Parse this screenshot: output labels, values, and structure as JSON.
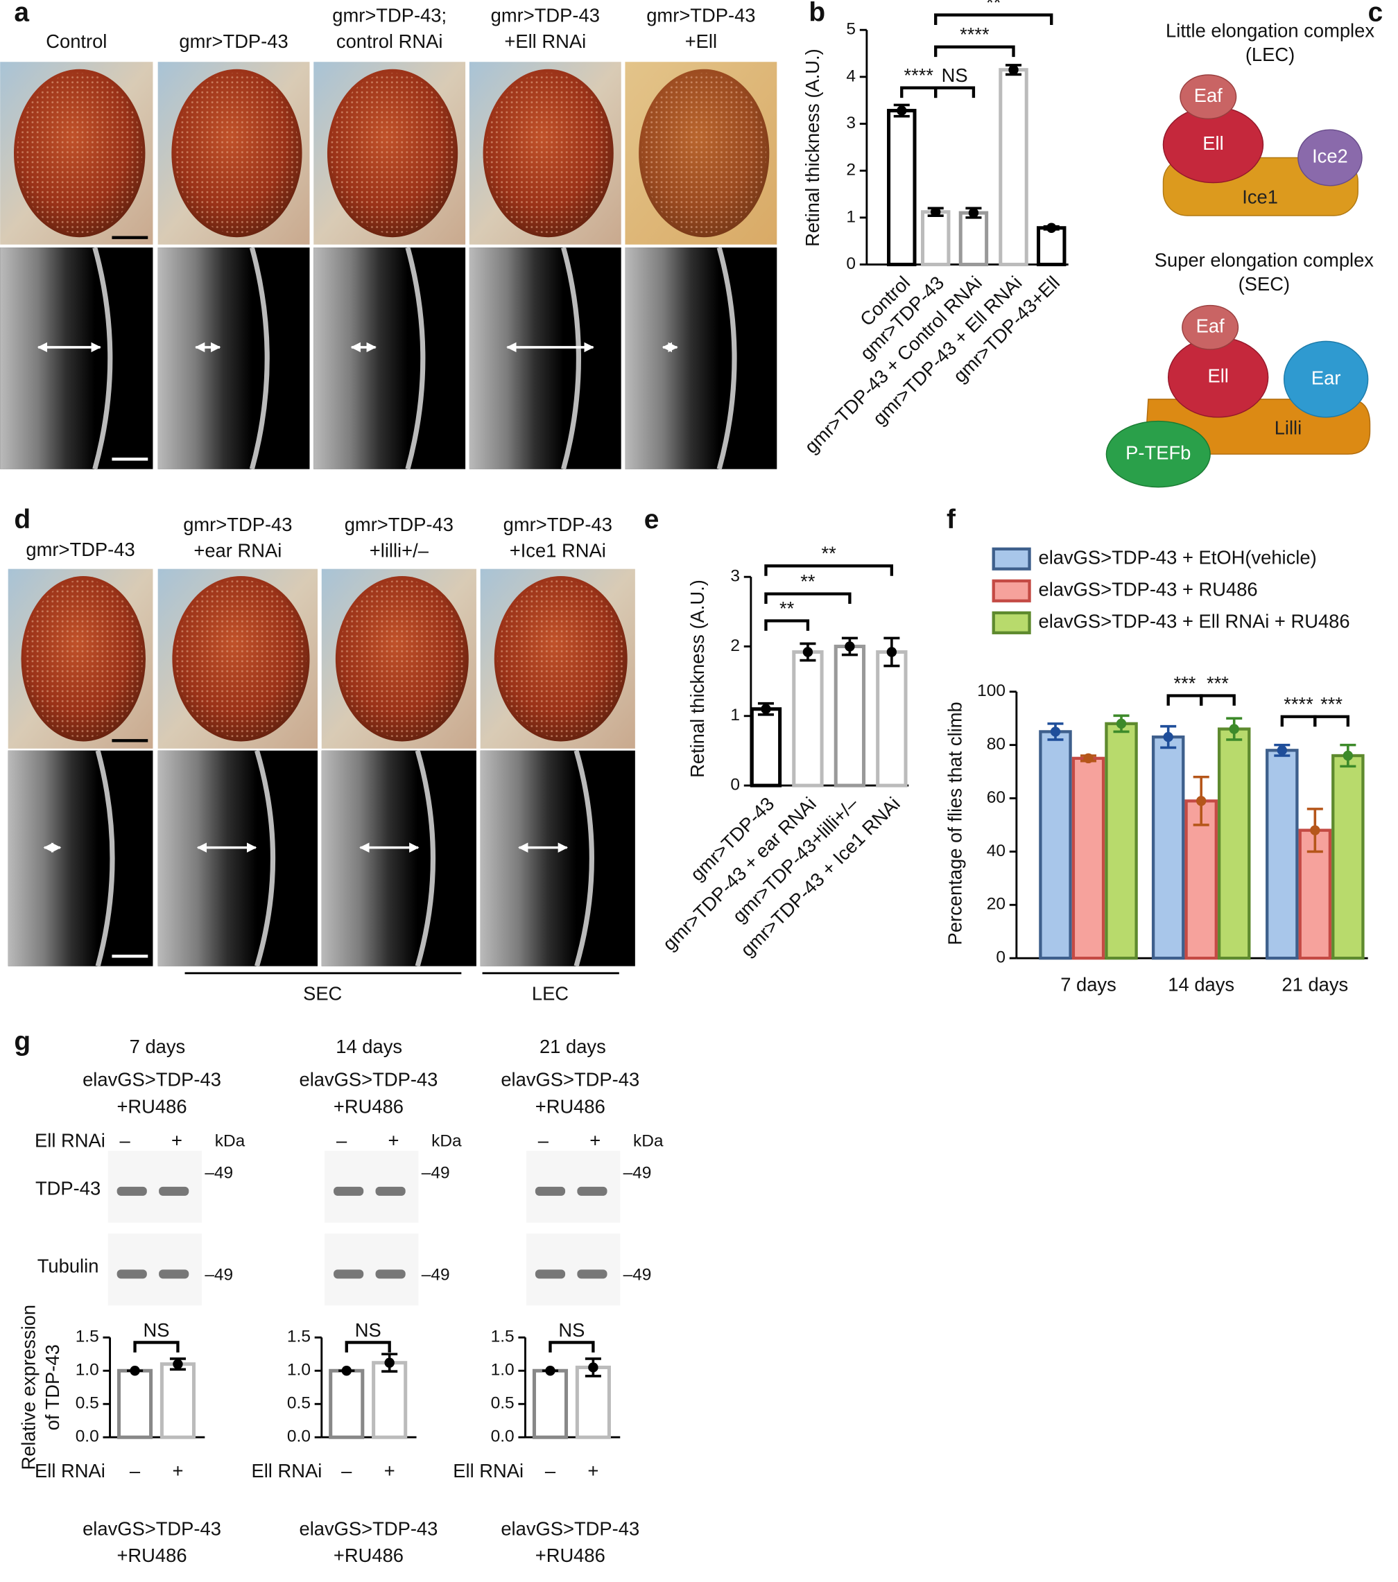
{
  "figure": {
    "panel_labels": [
      "a",
      "b",
      "c",
      "d",
      "e",
      "f",
      "g"
    ],
    "a": {
      "columns": [
        [
          "Control"
        ],
        [
          "gmr>TDP-43"
        ],
        [
          "gmr>TDP-43;",
          "control RNAi"
        ],
        [
          "gmr>TDP-43",
          "+Ell RNAi"
        ],
        [
          "gmr>TDP-43",
          "+Ell"
        ]
      ]
    },
    "c": {
      "lec_title": [
        "Little elongation complex",
        "(LEC)"
      ],
      "lec_parts": [
        "Eaf",
        "Ell",
        "Ice2",
        "Ice1"
      ],
      "sec_title": [
        "Super elongation complex",
        "(SEC)"
      ],
      "sec_parts": [
        "Eaf",
        "Ell",
        "Ear",
        "Lilli",
        "P-TEFb"
      ]
    },
    "d": {
      "columns": [
        [
          "gmr>TDP-43"
        ],
        [
          "gmr>TDP-43",
          "+ear RNAi"
        ],
        [
          "gmr>TDP-43",
          "+lilli+/–"
        ],
        [
          "gmr>TDP-43",
          "+Ice1 RNAi"
        ]
      ],
      "groups": [
        "SEC",
        "LEC"
      ]
    },
    "g": {
      "rnai_label": "Ell RNAi",
      "minus": "–",
      "plus": "+",
      "kda": "kDa",
      "bands": [
        "TDP-43",
        "Tubulin"
      ],
      "marker": "–49",
      "genotype": [
        "elavGS>TDP-43",
        "+RU486"
      ]
    }
  },
  "chart_data": [
    {
      "type": "bar",
      "ylabel": "Retinal thickness (A.U.)",
      "categories": [
        "Control",
        "gmr>TDP-43",
        "gmr>TDP-43 + Control RNAi",
        "gmr>TDP-43 + Ell RNAi",
        "gmr>TDP-43+Ell"
      ],
      "values": [
        3.28,
        1.12,
        1.1,
        4.15,
        0.78
      ],
      "errors": [
        0.12,
        0.08,
        0.1,
        0.1,
        0.03
      ],
      "colors": [
        "#000000",
        "#bbbbbb",
        "#999999",
        "#bbbbbb",
        "#000000"
      ],
      "ylim": [
        0,
        5
      ],
      "yticks": [
        0,
        1,
        2,
        3,
        4,
        5
      ],
      "annotations": [
        "****",
        "NS",
        "****",
        "**"
      ]
    },
    {
      "type": "bar",
      "ylabel": "Retinal thickness (A.U.)",
      "categories": [
        "gmr>TDP-43",
        "gmr>TDP-43 + ear RNAi",
        "gmr>TDP-43+lilli+/–",
        "gmr>TDP-43 + Ice1 RNAi"
      ],
      "values": [
        1.1,
        1.92,
        2.0,
        1.92
      ],
      "errors": [
        0.08,
        0.12,
        0.12,
        0.2
      ],
      "colors": [
        "#000000",
        "#bbbbbb",
        "#999999",
        "#bbbbbb"
      ],
      "ylim": [
        0,
        3
      ],
      "yticks": [
        0,
        1,
        2,
        3
      ],
      "annotations": [
        "**",
        "**",
        "**"
      ]
    },
    {
      "type": "grouped_bar",
      "ylabel": "Percentage of flies that climb",
      "categories": [
        "7 days",
        "14 days",
        "21 days"
      ],
      "series": [
        {
          "name": "elavGS>TDP-43 + EtOH(vehicle)",
          "color": "#a8c6ea",
          "edgecolor": "#3e5f8c",
          "errorcolor": "#1f4e9a",
          "values": [
            85,
            83,
            78
          ],
          "errors": [
            3,
            4,
            2
          ]
        },
        {
          "name": "elavGS>TDP-43 + RU486",
          "color": "#f6a29c",
          "edgecolor": "#c44a44",
          "errorcolor": "#b5561a",
          "values": [
            75,
            59,
            48
          ],
          "errors": [
            1,
            9,
            8
          ]
        },
        {
          "name": "elavGS>TDP-43 + Ell RNAi + RU486",
          "color": "#b8da6c",
          "edgecolor": "#5e8a2e",
          "errorcolor": "#3d8a2a",
          "values": [
            88,
            86,
            76
          ],
          "errors": [
            3,
            4,
            4
          ]
        }
      ],
      "ylim": [
        0,
        100
      ],
      "yticks": [
        0,
        20,
        40,
        60,
        80,
        100
      ],
      "annotations": [
        "***",
        "***",
        "****",
        "***"
      ]
    },
    {
      "type": "bar",
      "title": "7 days",
      "ylabel": [
        "Relative expression",
        "of TDP-43"
      ],
      "categories": [
        "–",
        "+"
      ],
      "values": [
        1.0,
        1.1
      ],
      "errors": [
        0.0,
        0.08
      ],
      "colors": [
        "#888888",
        "#bbbbbb"
      ],
      "ylim": [
        0,
        1.5
      ],
      "yticks": [
        {
          "value": 0,
          "label": "0.0"
        },
        {
          "value": 0.5,
          "label": "0.5"
        },
        {
          "value": 1,
          "label": "1.0"
        },
        {
          "value": 1.5,
          "label": "1.5"
        }
      ],
      "annotations": [
        "NS"
      ]
    },
    {
      "type": "bar",
      "title": "14 days",
      "categories": [
        "–",
        "+"
      ],
      "values": [
        1.0,
        1.12
      ],
      "errors": [
        0.0,
        0.13
      ],
      "colors": [
        "#888888",
        "#bbbbbb"
      ],
      "ylim": [
        0,
        1.5
      ],
      "yticks": [
        {
          "value": 0,
          "label": "0.0"
        },
        {
          "value": 0.5,
          "label": "0.5"
        },
        {
          "value": 1,
          "label": "1.0"
        },
        {
          "value": 1.5,
          "label": "1.5"
        }
      ],
      "annotations": [
        "NS"
      ]
    },
    {
      "type": "bar",
      "title": "21 days",
      "categories": [
        "–",
        "+"
      ],
      "values": [
        1.0,
        1.05
      ],
      "errors": [
        0.0,
        0.13
      ],
      "colors": [
        "#888888",
        "#bbbbbb"
      ],
      "ylim": [
        0,
        1.5
      ],
      "yticks": [
        {
          "value": 0,
          "label": "0.0"
        },
        {
          "value": 0.5,
          "label": "0.5"
        },
        {
          "value": 1,
          "label": "1.0"
        },
        {
          "value": 1.5,
          "label": "1.5"
        }
      ],
      "annotations": [
        "NS"
      ]
    }
  ]
}
